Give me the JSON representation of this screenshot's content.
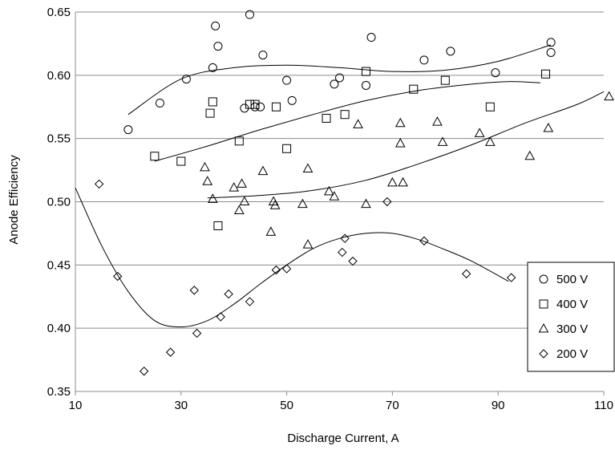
{
  "chart_data": {
    "type": "scatter",
    "title": "",
    "xlabel": "Discharge Current, A",
    "ylabel": "Anode Efficiency",
    "xlim": [
      10,
      110
    ],
    "ylim": [
      0.35,
      0.65
    ],
    "xticks": [
      10,
      30,
      50,
      70,
      90,
      110
    ],
    "yticks": [
      0.35,
      0.4,
      0.45,
      0.5,
      0.55,
      0.6,
      0.65
    ],
    "ytick_labels": [
      "0.35",
      "0.40",
      "0.45",
      "0.50",
      "0.55",
      "0.60",
      "0.65"
    ],
    "grid": "horizontal",
    "legend_position": "bottom-right",
    "series": [
      {
        "name": "500 V",
        "marker": "circle",
        "points": [
          [
            20,
            0.557
          ],
          [
            26,
            0.578
          ],
          [
            31,
            0.597
          ],
          [
            36,
            0.606
          ],
          [
            36.5,
            0.639
          ],
          [
            37,
            0.623
          ],
          [
            42,
            0.574
          ],
          [
            43,
            0.648
          ],
          [
            44,
            0.575
          ],
          [
            45,
            0.575
          ],
          [
            45.5,
            0.616
          ],
          [
            50,
            0.596
          ],
          [
            51,
            0.58
          ],
          [
            59,
            0.593
          ],
          [
            60,
            0.598
          ],
          [
            65,
            0.592
          ],
          [
            66,
            0.63
          ],
          [
            76,
            0.612
          ],
          [
            81,
            0.619
          ],
          [
            89.5,
            0.602
          ],
          [
            100,
            0.626
          ],
          [
            100,
            0.618
          ]
        ],
        "trend": [
          [
            20,
            0.569
          ],
          [
            30,
            0.597
          ],
          [
            40,
            0.606
          ],
          [
            50,
            0.608
          ],
          [
            60,
            0.606
          ],
          [
            70,
            0.603
          ],
          [
            80,
            0.604
          ],
          [
            90,
            0.611
          ],
          [
            100,
            0.624
          ]
        ]
      },
      {
        "name": "400 V",
        "marker": "square",
        "points": [
          [
            25,
            0.536
          ],
          [
            30,
            0.532
          ],
          [
            35.5,
            0.57
          ],
          [
            36,
            0.579
          ],
          [
            37,
            0.481
          ],
          [
            41,
            0.548
          ],
          [
            43,
            0.577
          ],
          [
            44,
            0.577
          ],
          [
            48,
            0.575
          ],
          [
            50,
            0.542
          ],
          [
            57.5,
            0.566
          ],
          [
            61,
            0.569
          ],
          [
            65,
            0.603
          ],
          [
            74,
            0.589
          ],
          [
            80,
            0.596
          ],
          [
            88.5,
            0.575
          ],
          [
            99,
            0.601
          ]
        ],
        "trend": [
          [
            25,
            0.532
          ],
          [
            35,
            0.544
          ],
          [
            45,
            0.557
          ],
          [
            55,
            0.569
          ],
          [
            65,
            0.58
          ],
          [
            75,
            0.588
          ],
          [
            85,
            0.593
          ],
          [
            92,
            0.595
          ],
          [
            98,
            0.594
          ]
        ]
      },
      {
        "name": "300 V",
        "marker": "triangle",
        "points": [
          [
            34.5,
            0.527
          ],
          [
            35,
            0.516
          ],
          [
            36,
            0.502
          ],
          [
            40,
            0.511
          ],
          [
            41,
            0.493
          ],
          [
            41.5,
            0.514
          ],
          [
            42,
            0.5
          ],
          [
            45.5,
            0.524
          ],
          [
            47,
            0.476
          ],
          [
            47.5,
            0.5
          ],
          [
            47.8,
            0.497
          ],
          [
            53,
            0.498
          ],
          [
            54,
            0.526
          ],
          [
            54,
            0.466
          ],
          [
            58,
            0.508
          ],
          [
            59,
            0.504
          ],
          [
            63.5,
            0.561
          ],
          [
            65,
            0.498
          ],
          [
            70,
            0.515
          ],
          [
            71.5,
            0.562
          ],
          [
            71.5,
            0.546
          ],
          [
            72,
            0.515
          ],
          [
            78.5,
            0.563
          ],
          [
            79.5,
            0.547
          ],
          [
            86.5,
            0.554
          ],
          [
            88.5,
            0.547
          ],
          [
            96,
            0.536
          ],
          [
            99.5,
            0.558
          ],
          [
            111,
            0.583
          ]
        ],
        "trend": [
          [
            35,
            0.503
          ],
          [
            45,
            0.505
          ],
          [
            55,
            0.509
          ],
          [
            65,
            0.517
          ],
          [
            75,
            0.53
          ],
          [
            85,
            0.545
          ],
          [
            95,
            0.562
          ],
          [
            105,
            0.577
          ],
          [
            110,
            0.587
          ]
        ]
      },
      {
        "name": "200 V",
        "marker": "diamond",
        "points": [
          [
            14.5,
            0.514
          ],
          [
            18,
            0.441
          ],
          [
            23,
            0.366
          ],
          [
            28,
            0.381
          ],
          [
            32.5,
            0.43
          ],
          [
            33,
            0.396
          ],
          [
            37.5,
            0.409
          ],
          [
            39,
            0.427
          ],
          [
            43,
            0.421
          ],
          [
            48,
            0.446
          ],
          [
            50,
            0.447
          ],
          [
            60.5,
            0.46
          ],
          [
            61,
            0.471
          ],
          [
            62.5,
            0.453
          ],
          [
            69,
            0.5
          ],
          [
            76,
            0.469
          ],
          [
            84,
            0.443
          ],
          [
            92.5,
            0.44
          ]
        ],
        "trend": [
          [
            10,
            0.511
          ],
          [
            15,
            0.465
          ],
          [
            20,
            0.429
          ],
          [
            25,
            0.406
          ],
          [
            30,
            0.401
          ],
          [
            35,
            0.406
          ],
          [
            40,
            0.419
          ],
          [
            45,
            0.435
          ],
          [
            50,
            0.45
          ],
          [
            55,
            0.463
          ],
          [
            60,
            0.471
          ],
          [
            65,
            0.475
          ],
          [
            70,
            0.475
          ],
          [
            75,
            0.47
          ],
          [
            80,
            0.462
          ],
          [
            85,
            0.453
          ],
          [
            92,
            0.437
          ]
        ]
      }
    ]
  }
}
